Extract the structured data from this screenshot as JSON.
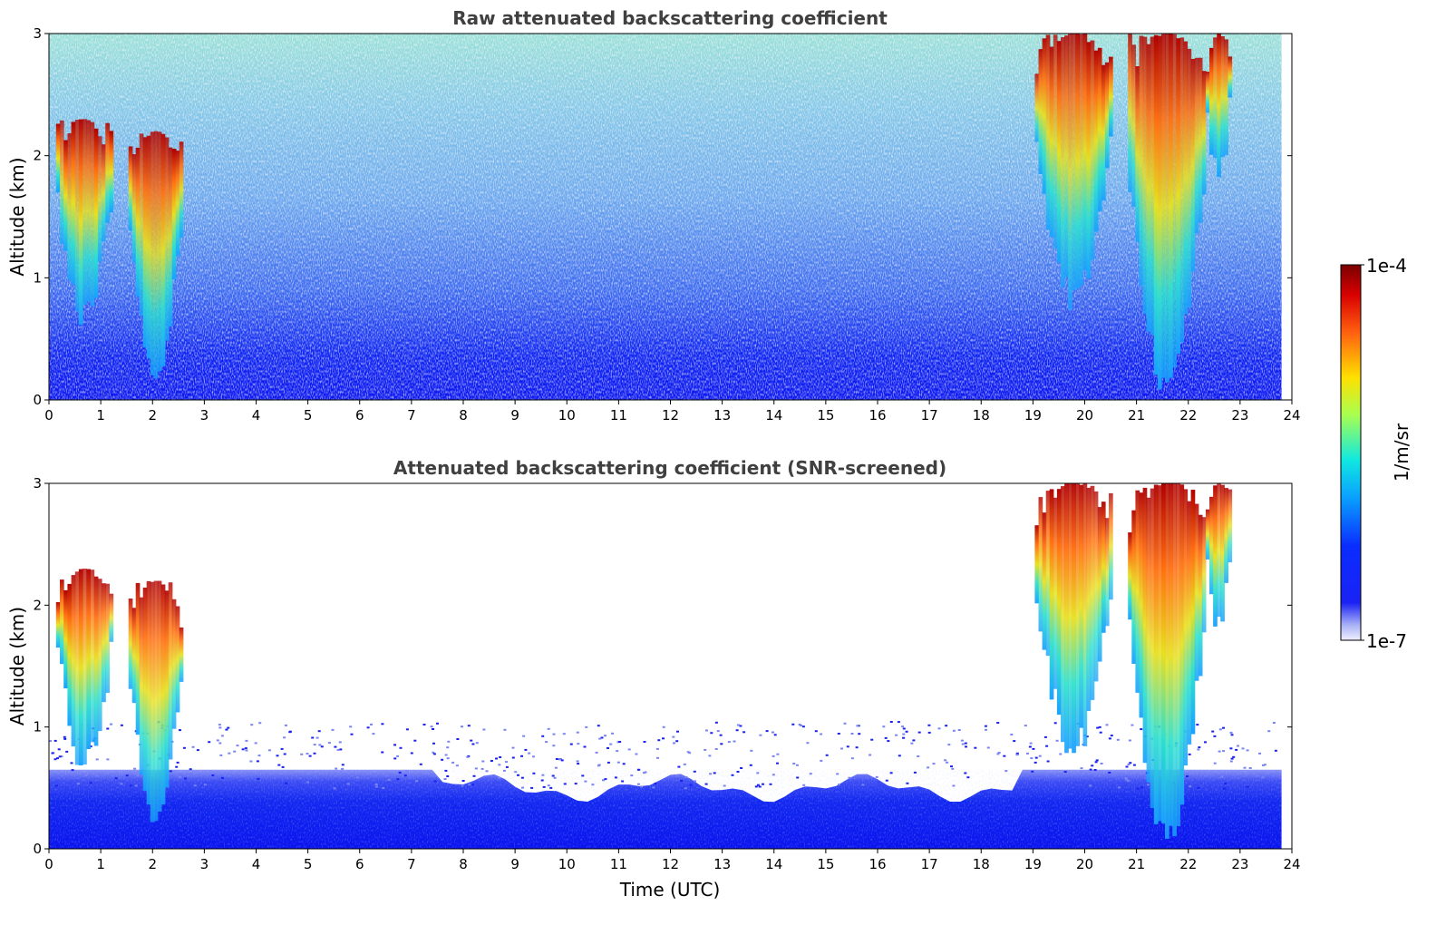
{
  "chart_data": [
    {
      "type": "heatmap",
      "title": "Raw attenuated backscattering coefficient",
      "xlabel": "",
      "ylabel": "Altitude (km)",
      "xlim": [
        0,
        24
      ],
      "ylim": [
        0,
        3
      ],
      "x_ticks": [
        "0",
        "1",
        "2",
        "3",
        "4",
        "5",
        "6",
        "7",
        "8",
        "9",
        "10",
        "11",
        "12",
        "13",
        "14",
        "15",
        "16",
        "17",
        "18",
        "19",
        "20",
        "21",
        "22",
        "23",
        "24"
      ],
      "y_ticks": [
        "0",
        "1",
        "2",
        "3"
      ],
      "colorscale": "jet",
      "clouds": [
        {
          "t_start": 0.1,
          "t_end": 1.2,
          "alt_base": 0.55,
          "alt_top": 2.3
        },
        {
          "t_start": 1.5,
          "t_end": 2.55,
          "alt_base": 0.15,
          "alt_top": 2.2
        },
        {
          "t_start": 19.0,
          "t_end": 20.5,
          "alt_base": 0.7,
          "alt_top": 3.0
        },
        {
          "t_start": 20.8,
          "t_end": 22.3,
          "alt_base": 0.0,
          "alt_top": 3.0
        },
        {
          "t_start": 22.3,
          "t_end": 22.8,
          "alt_base": 1.7,
          "alt_top": 3.0
        }
      ]
    },
    {
      "type": "heatmap",
      "title": "Attenuated backscattering coefficient (SNR-screened)",
      "xlabel": "Time (UTC)",
      "ylabel": "Altitude (km)",
      "xlim": [
        0,
        24
      ],
      "ylim": [
        0,
        3
      ],
      "x_ticks": [
        "0",
        "1",
        "2",
        "3",
        "4",
        "5",
        "6",
        "7",
        "8",
        "9",
        "10",
        "11",
        "12",
        "13",
        "14",
        "15",
        "16",
        "17",
        "18",
        "19",
        "20",
        "21",
        "22",
        "23",
        "24"
      ],
      "y_ticks": [
        "0",
        "1",
        "2",
        "3"
      ],
      "colorscale": "jet",
      "boundary_layer_top_km": 0.65,
      "clouds": [
        {
          "t_start": 0.1,
          "t_end": 1.2,
          "alt_base": 0.55,
          "alt_top": 2.3
        },
        {
          "t_start": 1.5,
          "t_end": 2.55,
          "alt_base": 0.15,
          "alt_top": 2.2
        },
        {
          "t_start": 19.0,
          "t_end": 20.5,
          "alt_base": 0.7,
          "alt_top": 3.0
        },
        {
          "t_start": 20.8,
          "t_end": 22.3,
          "alt_base": 0.0,
          "alt_top": 3.0
        },
        {
          "t_start": 22.3,
          "t_end": 22.8,
          "alt_base": 1.7,
          "alt_top": 3.0
        }
      ]
    }
  ],
  "colorbar": {
    "max_label": "1e-4",
    "min_label": "1e-7",
    "unit_label": "1/m/sr"
  }
}
